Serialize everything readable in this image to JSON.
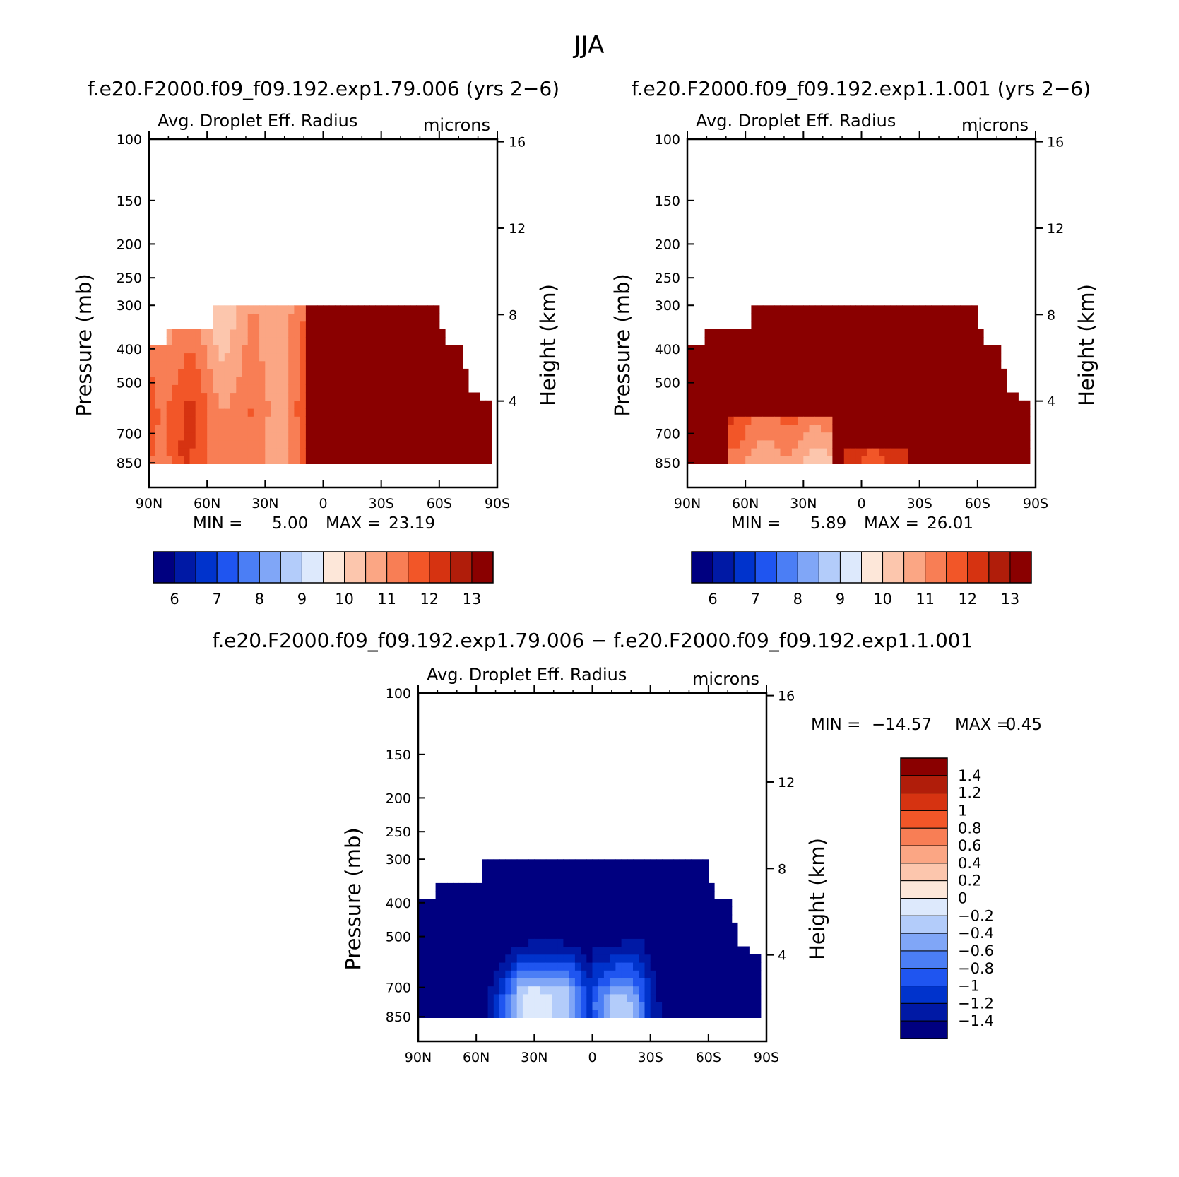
{
  "figure": {
    "title": "JJA"
  },
  "chart_data": [
    {
      "type": "heatmap",
      "panel": "top-left",
      "title": "f.e20.F2000.f09_f09.192.exp1.79.006 (yrs 2−6)",
      "variable": "Avg. Droplet Eff. Radius",
      "units": "microns",
      "xlabel": "",
      "ylabel": "Pressure (mb)",
      "ylabel_right": "Height (km)",
      "x_ticks": [
        "90N",
        "60N",
        "30N",
        "0",
        "30S",
        "60S",
        "90S"
      ],
      "y_ticks": [
        "100",
        "150",
        "200",
        "250",
        "300",
        "400",
        "500",
        "700",
        "850"
      ],
      "height_ticks": [
        "16",
        "12",
        "8",
        "4"
      ],
      "ylim": [
        1000,
        100
      ],
      "min_label": "MIN =",
      "min_value": "5.00",
      "max_label": "MAX =",
      "max_value": "23.19",
      "colorbar": {
        "orientation": "horizontal",
        "labels": [
          "6",
          "7",
          "8",
          "9",
          "10",
          "11",
          "12",
          "13"
        ],
        "colors": [
          "#000080",
          "#0019a5",
          "#0033cc",
          "#1f55f0",
          "#4b7ef5",
          "#80a6f7",
          "#b3ccfa",
          "#dde9fc",
          "#fde7d9",
          "#fcc6ad",
          "#fba684",
          "#f87e55",
          "#f25628",
          "#d63311",
          "#b01d0a",
          "#8a0000"
        ]
      },
      "pattern": "north_light_south_dark"
    },
    {
      "type": "heatmap",
      "panel": "top-right",
      "title": "f.e20.F2000.f09_f09.192.exp1.1.001 (yrs 2−6)",
      "variable": "Avg. Droplet Eff. Radius",
      "units": "microns",
      "xlabel": "",
      "ylabel": "Pressure (mb)",
      "ylabel_right": "Height (km)",
      "x_ticks": [
        "90N",
        "60N",
        "30N",
        "0",
        "30S",
        "60S",
        "90S"
      ],
      "y_ticks": [
        "100",
        "150",
        "200",
        "250",
        "300",
        "400",
        "500",
        "700",
        "850"
      ],
      "height_ticks": [
        "16",
        "12",
        "8",
        "4"
      ],
      "ylim": [
        1000,
        100
      ],
      "min_label": "MIN =",
      "min_value": "5.89",
      "max_label": "MAX =",
      "max_value": "26.01",
      "colorbar": {
        "orientation": "horizontal",
        "labels": [
          "6",
          "7",
          "8",
          "9",
          "10",
          "11",
          "12",
          "13"
        ],
        "colors": [
          "#000080",
          "#0019a5",
          "#0033cc",
          "#1f55f0",
          "#4b7ef5",
          "#80a6f7",
          "#b3ccfa",
          "#dde9fc",
          "#fde7d9",
          "#fcc6ad",
          "#fba684",
          "#f87e55",
          "#f25628",
          "#d63311",
          "#b01d0a",
          "#8a0000"
        ]
      },
      "pattern": "mostly_dark"
    },
    {
      "type": "heatmap",
      "panel": "bottom",
      "title": "f.e20.F2000.f09_f09.192.exp1.79.006 − f.e20.F2000.f09_f09.192.exp1.1.001",
      "variable": "Avg. Droplet Eff. Radius",
      "units": "microns",
      "xlabel": "",
      "ylabel": "Pressure (mb)",
      "ylabel_right": "Height (km)",
      "x_ticks": [
        "90N",
        "60N",
        "30N",
        "0",
        "30S",
        "60S",
        "90S"
      ],
      "y_ticks": [
        "100",
        "150",
        "200",
        "250",
        "300",
        "400",
        "500",
        "700",
        "850"
      ],
      "height_ticks": [
        "16",
        "12",
        "8",
        "4"
      ],
      "ylim": [
        1000,
        100
      ],
      "min_label": "MIN =",
      "min_value": "−14.57",
      "max_label": "MAX =",
      "max_value": "0.45",
      "colorbar": {
        "orientation": "vertical",
        "labels": [
          "1.4",
          "1.2",
          "1",
          "0.8",
          "0.6",
          "0.4",
          "0.2",
          "0",
          "−0.2",
          "−0.4",
          "−0.6",
          "−0.8",
          "−1",
          "−1.2",
          "−1.4"
        ],
        "colors": [
          "#8a0000",
          "#b01d0a",
          "#d63311",
          "#f25628",
          "#f87e55",
          "#fba684",
          "#fcc6ad",
          "#fde7d9",
          "#dde9fc",
          "#b3ccfa",
          "#80a6f7",
          "#4b7ef5",
          "#1f55f0",
          "#0033cc",
          "#0019a5",
          "#000080"
        ]
      },
      "pattern": "difference_blue"
    }
  ]
}
